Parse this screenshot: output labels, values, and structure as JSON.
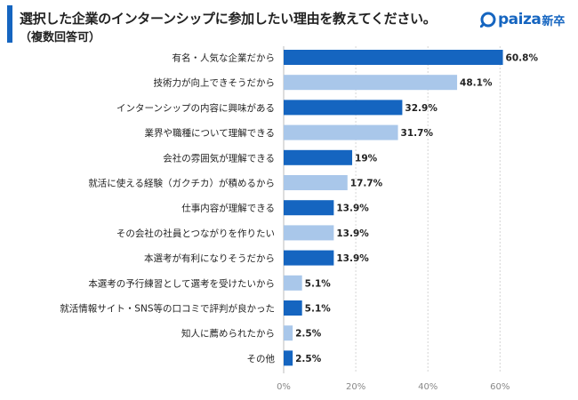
{
  "header": {
    "title": "選択した企業のインターンシップに参加したい理由を教えてください。",
    "subtitle": "（複数回答可）"
  },
  "logo": {
    "brand": "paiza",
    "suffix": "新卒"
  },
  "colors": {
    "accent": "#1565c0",
    "dark_bar": "#1565c0",
    "light_bar": "#a9c7ea",
    "grid": "#d4d4d4"
  },
  "chart_data": {
    "type": "bar",
    "orientation": "horizontal",
    "title": "選択した企業のインターンシップに参加したい理由を教えてください。",
    "categories": [
      "有名・人気な企業だから",
      "技術力が向上できそうだから",
      "インターンシップの内容に興味がある",
      "業界や職種について理解できる",
      "会社の雰囲気が理解できる",
      "就活に使える経験（ガクチカ）が積めるから",
      "仕事内容が理解できる",
      "その会社の社員とつながりを作りたい",
      "本選考が有利になりそうだから",
      "本選考の予行練習として選考を受けたいから",
      "就活情報サイト・SNS等の口コミで評判が良かった",
      "知人に薦められたから",
      "その他"
    ],
    "values": [
      60.8,
      48.1,
      32.9,
      31.7,
      19,
      17.7,
      13.9,
      13.9,
      13.9,
      5.1,
      5.1,
      2.5,
      2.5
    ],
    "value_labels": [
      "60.8%",
      "48.1%",
      "32.9%",
      "31.7%",
      "19%",
      "17.7%",
      "13.9%",
      "13.9%",
      "13.9%",
      "5.1%",
      "5.1%",
      "2.5%",
      "2.5%"
    ],
    "highlight": [
      true,
      false,
      true,
      false,
      true,
      false,
      true,
      false,
      true,
      false,
      true,
      false,
      true
    ],
    "xlim": [
      0,
      70
    ],
    "xticks": [
      0,
      20,
      40,
      60
    ],
    "xtick_labels": [
      "0%",
      "20%",
      "40%",
      "60%"
    ],
    "grid": true,
    "xlabel": "",
    "ylabel": ""
  }
}
